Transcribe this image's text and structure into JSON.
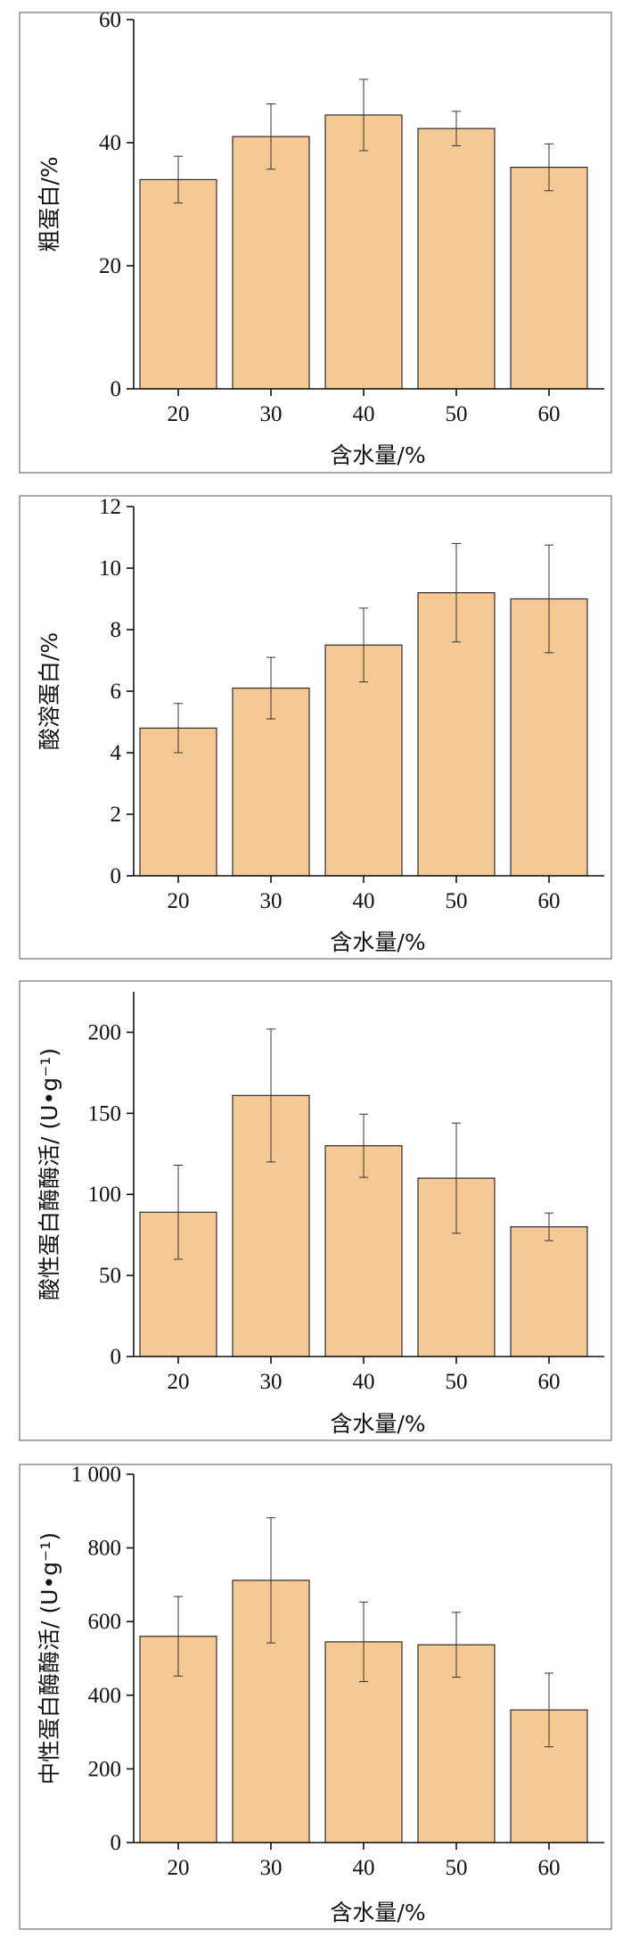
{
  "chart_data": [
    {
      "type": "bar",
      "categories": [
        "20",
        "30",
        "40",
        "50",
        "60"
      ],
      "values": [
        34,
        41,
        44.5,
        42.3,
        36
      ],
      "error": [
        3.8,
        5.3,
        5.8,
        2.8,
        3.8
      ],
      "xlabel": "含水量/%",
      "ylabel": "粗蛋白/%",
      "ylim": [
        0,
        60
      ],
      "yticks": [
        "0",
        "20",
        "40",
        "60"
      ],
      "ytick_values": [
        0,
        20,
        40,
        60
      ],
      "colors": {
        "bar": "#f6c894"
      }
    },
    {
      "type": "bar",
      "categories": [
        "20",
        "30",
        "40",
        "50",
        "60"
      ],
      "values": [
        4.8,
        6.1,
        7.5,
        9.2,
        9.0
      ],
      "error": [
        0.8,
        1.0,
        1.2,
        1.6,
        1.75
      ],
      "xlabel": "含水量/%",
      "ylabel": "酸溶蛋白/%",
      "ylim": [
        0,
        12
      ],
      "yticks": [
        "0",
        "2",
        "4",
        "6",
        "8",
        "10",
        "12"
      ],
      "ytick_values": [
        0,
        2,
        4,
        6,
        8,
        10,
        12
      ],
      "colors": {
        "bar": "#f6c894"
      }
    },
    {
      "type": "bar",
      "categories": [
        "20",
        "30",
        "40",
        "50",
        "60"
      ],
      "values": [
        89,
        161,
        130,
        110,
        80
      ],
      "error": [
        29,
        41,
        19.5,
        34,
        8.5
      ],
      "xlabel": "含水量/%",
      "ylabel": "酸性蛋白酶酶活/ (U•g⁻¹)",
      "ylim": [
        0,
        225
      ],
      "yticks": [
        "0",
        "50",
        "100",
        "150",
        "200"
      ],
      "ytick_values": [
        0,
        50,
        100,
        150,
        200
      ],
      "colors": {
        "bar": "#f6c894"
      }
    },
    {
      "type": "bar",
      "categories": [
        "20",
        "30",
        "40",
        "50",
        "60"
      ],
      "values": [
        560,
        712,
        545,
        537,
        360
      ],
      "error": [
        108,
        170,
        108,
        88,
        100
      ],
      "xlabel": "含水量/%",
      "ylabel": "中性蛋白酶酶活/ (U•g⁻¹)",
      "ylim": [
        0,
        1000
      ],
      "yticks": [
        "0",
        "200",
        "400",
        "600",
        "800",
        "1 000"
      ],
      "ytick_values": [
        0,
        200,
        400,
        600,
        800,
        1000
      ],
      "colors": {
        "bar": "#f6c894"
      }
    }
  ]
}
